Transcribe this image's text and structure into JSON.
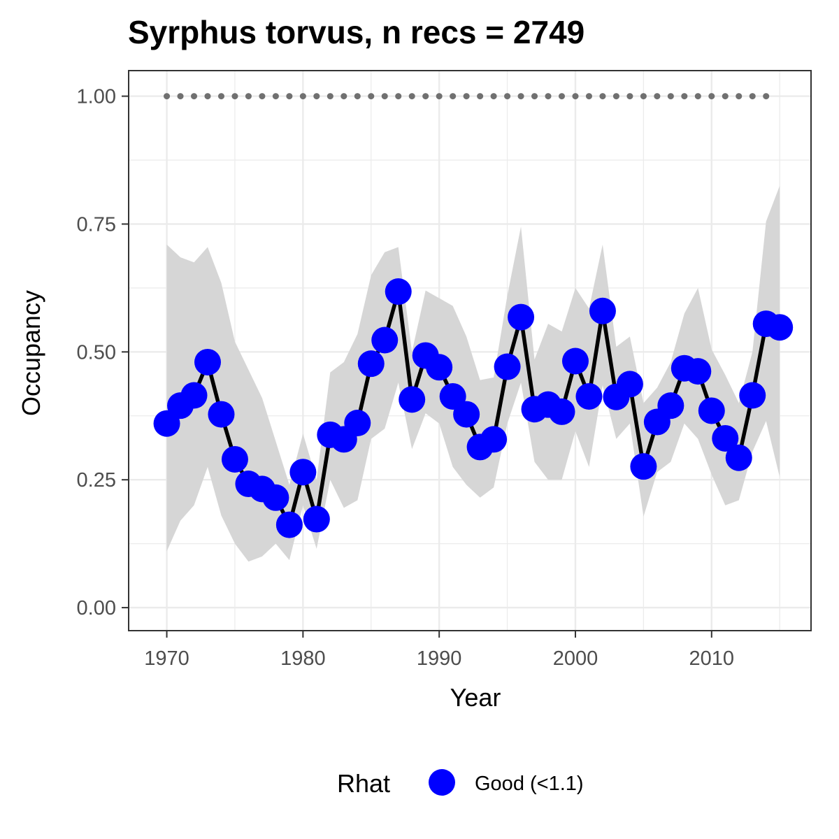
{
  "chart_data": {
    "type": "line",
    "title": "Syrphus torvus, n recs = 2749",
    "xlabel": "Year",
    "ylabel": "Occupancy",
    "xlim": [
      1967.2,
      2017.3
    ],
    "ylim": [
      -0.045,
      1.05
    ],
    "x_ticks": [
      1970,
      1980,
      1990,
      2000,
      2010
    ],
    "x_tick_labels": [
      "1970",
      "1980",
      "1990",
      "2000",
      "2010"
    ],
    "y_ticks": [
      0,
      0.25,
      0.5,
      0.75,
      1.0
    ],
    "y_tick_labels": [
      "0.00",
      "0.25",
      "0.50",
      "0.75",
      "1.00"
    ],
    "grid": true,
    "legend": {
      "title": "Rhat",
      "position": "bottom",
      "entries": [
        {
          "label": "Good (<1.1)",
          "color": "#0000ff"
        }
      ]
    },
    "colors": {
      "points": "#0000ff",
      "line": "#000000",
      "ribbon": "#d6d6d6",
      "reference_dots": "#707070",
      "grid": "#ebebeb",
      "panel_border": "#333333"
    },
    "years": [
      1970,
      1971,
      1972,
      1973,
      1974,
      1975,
      1976,
      1977,
      1978,
      1979,
      1980,
      1981,
      1982,
      1983,
      1984,
      1985,
      1986,
      1987,
      1988,
      1989,
      1990,
      1991,
      1992,
      1993,
      1994,
      1995,
      1996,
      1997,
      1998,
      1999,
      2000,
      2001,
      2002,
      2003,
      2004,
      2005,
      2006,
      2007,
      2008,
      2009,
      2010,
      2011,
      2012,
      2013,
      2014,
      2015
    ],
    "occupancy": [
      0.36,
      0.395,
      0.415,
      0.48,
      0.378,
      0.29,
      0.242,
      0.232,
      0.215,
      0.162,
      0.265,
      0.173,
      0.338,
      0.329,
      0.361,
      0.477,
      0.523,
      0.618,
      0.407,
      0.493,
      0.47,
      0.413,
      0.378,
      0.314,
      0.329,
      0.471,
      0.568,
      0.388,
      0.397,
      0.383,
      0.482,
      0.413,
      0.58,
      0.412,
      0.437,
      0.276,
      0.363,
      0.395,
      0.468,
      0.462,
      0.385,
      0.331,
      0.293,
      0.415,
      0.555,
      0.548
    ],
    "lower_ci": [
      0.11,
      0.17,
      0.2,
      0.275,
      0.18,
      0.125,
      0.09,
      0.1,
      0.125,
      0.093,
      0.2,
      0.115,
      0.25,
      0.195,
      0.21,
      0.33,
      0.35,
      0.44,
      0.31,
      0.38,
      0.36,
      0.275,
      0.24,
      0.215,
      0.235,
      0.36,
      0.44,
      0.285,
      0.25,
      0.25,
      0.345,
      0.275,
      0.435,
      0.33,
      0.36,
      0.178,
      0.265,
      0.285,
      0.36,
      0.33,
      0.26,
      0.2,
      0.21,
      0.305,
      0.365,
      0.255
    ],
    "upper_ci": [
      0.71,
      0.685,
      0.675,
      0.705,
      0.635,
      0.52,
      0.465,
      0.41,
      0.325,
      0.24,
      0.34,
      0.25,
      0.46,
      0.48,
      0.535,
      0.65,
      0.695,
      0.705,
      0.5,
      0.62,
      0.605,
      0.59,
      0.53,
      0.445,
      0.45,
      0.61,
      0.745,
      0.485,
      0.555,
      0.54,
      0.625,
      0.585,
      0.71,
      0.51,
      0.53,
      0.4,
      0.43,
      0.48,
      0.575,
      0.625,
      0.505,
      0.455,
      0.4,
      0.5,
      0.755,
      0.825
    ],
    "reference_years": [
      1970,
      1971,
      1972,
      1973,
      1974,
      1975,
      1976,
      1977,
      1978,
      1979,
      1980,
      1981,
      1982,
      1983,
      1984,
      1985,
      1986,
      1987,
      1988,
      1989,
      1990,
      1991,
      1992,
      1993,
      1994,
      1995,
      1996,
      1997,
      1998,
      1999,
      2000,
      2001,
      2002,
      2003,
      2004,
      2005,
      2006,
      2007,
      2008,
      2009,
      2010,
      2011,
      2012,
      2013,
      2014
    ],
    "reference_value": 1.0
  }
}
